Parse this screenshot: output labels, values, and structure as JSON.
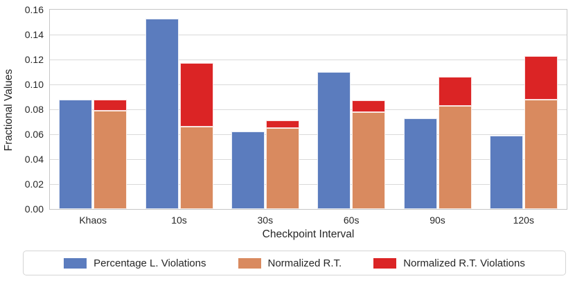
{
  "chart_data": {
    "type": "bar",
    "title": "",
    "xlabel": "Checkpoint Interval",
    "ylabel": "Fractional Values",
    "categories": [
      "Khaos",
      "10s",
      "30s",
      "60s",
      "90s",
      "120s"
    ],
    "series": [
      {
        "name": "Percentage L. Violations",
        "color": "#5b7cbe",
        "stack": "left",
        "values": [
          0.088,
          0.153,
          0.062,
          0.11,
          0.073,
          0.059
        ]
      },
      {
        "name": "Normalized R.T.",
        "color": "#d98a5f",
        "stack": "right",
        "values": [
          0.079,
          0.066,
          0.065,
          0.078,
          0.083,
          0.088
        ]
      },
      {
        "name": "Normalized R.T. Violations",
        "color": "#db2425",
        "stack": "right",
        "values": [
          0.009,
          0.051,
          0.006,
          0.009,
          0.023,
          0.035
        ],
        "stack_top_totals": [
          0.088,
          0.117,
          0.071,
          0.087,
          0.106,
          0.123
        ]
      }
    ],
    "ylim": [
      0,
      0.16
    ],
    "yticks": [
      0.0,
      0.02,
      0.04,
      0.06,
      0.08,
      0.1,
      0.12,
      0.14,
      0.16
    ],
    "ytick_format_decimals": 2,
    "grid": true,
    "legend_position": "bottom"
  },
  "style_colors": {
    "grid": "#d9d9d9",
    "spine": "#c6c6c6",
    "text": "#262626"
  }
}
